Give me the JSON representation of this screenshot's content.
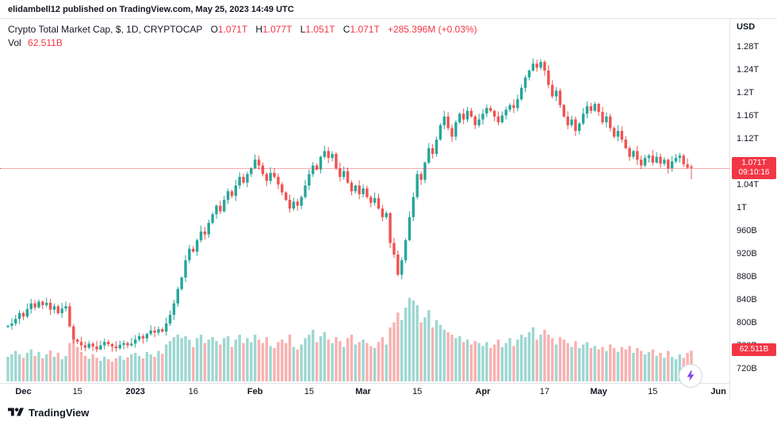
{
  "header": {
    "text": "elidambell12 published on TradingView.com, May 25, 2023 14:49 UTC"
  },
  "legend": {
    "title": "Crypto Total Market Cap, $, 1D, CRYPTOCAP",
    "o_key": "O",
    "o_value": "1.071T",
    "h_key": "H",
    "h_value": "1.077T",
    "l_key": "L",
    "l_value": "1.051T",
    "c_key": "C",
    "c_value": "1.071T",
    "change": "+285.396M (+0.03%)",
    "vol_label": "Vol",
    "vol_value": "62.511B"
  },
  "price_axis": {
    "currency": "USD",
    "ticks": [
      {
        "value": 1280,
        "label": "1.28T"
      },
      {
        "value": 1240,
        "label": "1.24T"
      },
      {
        "value": 1200,
        "label": "1.2T"
      },
      {
        "value": 1160,
        "label": "1.16T"
      },
      {
        "value": 1120,
        "label": "1.12T"
      },
      {
        "value": 1080,
        "label": "1.08T"
      },
      {
        "value": 1040,
        "label": "1.04T"
      },
      {
        "value": 1000,
        "label": "1T"
      },
      {
        "value": 960,
        "label": "960B"
      },
      {
        "value": 920,
        "label": "920B"
      },
      {
        "value": 880,
        "label": "880B"
      },
      {
        "value": 840,
        "label": "840B"
      },
      {
        "value": 800,
        "label": "800B"
      },
      {
        "value": 760,
        "label": "760B"
      },
      {
        "value": 720,
        "label": "720B"
      }
    ],
    "last_price_badge": {
      "price": "1.071T",
      "countdown": "09:10:16"
    },
    "volume_badge": {
      "value": "62.511B"
    }
  },
  "time_axis": {
    "ticks": [
      {
        "label": "Dec",
        "i": 4,
        "bold": true
      },
      {
        "label": "15",
        "i": 18,
        "bold": false
      },
      {
        "label": "2023",
        "i": 33,
        "bold": true
      },
      {
        "label": "16",
        "i": 48,
        "bold": false
      },
      {
        "label": "Feb",
        "i": 64,
        "bold": true
      },
      {
        "label": "15",
        "i": 78,
        "bold": false
      },
      {
        "label": "Mar",
        "i": 92,
        "bold": true
      },
      {
        "label": "15",
        "i": 106,
        "bold": false
      },
      {
        "label": "Apr",
        "i": 123,
        "bold": true
      },
      {
        "label": "17",
        "i": 139,
        "bold": false
      },
      {
        "label": "May",
        "i": 153,
        "bold": true
      },
      {
        "label": "15",
        "i": 167,
        "bold": false
      },
      {
        "label": "Jun",
        "i": 184,
        "bold": true
      }
    ]
  },
  "footer": {
    "brand": "TradingView"
  },
  "colors": {
    "up": "#26a69a",
    "down": "#ef5350",
    "vol_up": "rgba(38,166,154,0.45)",
    "vol_down": "rgba(239,83,80,0.45)",
    "accent_red": "#f23645",
    "bolt": "#7e3ff2",
    "text": "#131722",
    "border": "#e0e3eb"
  },
  "chart_data": {
    "type": "candlestick+volume",
    "title": "Crypto Total Market Cap, $, 1D, CRYPTOCAP",
    "unit": "billions of USD",
    "ylabel": "USD",
    "y_axis_range": [
      700,
      1300
    ],
    "current_price": 1071,
    "current_volume": 62.511,
    "first_open": 794,
    "last_candle": {
      "open": 1073,
      "high": 1077,
      "low": 1051,
      "close": 1071
    },
    "closes": [
      796,
      800,
      808,
      818,
      812,
      825,
      835,
      828,
      838,
      832,
      836,
      824,
      830,
      818,
      826,
      830,
      795,
      772,
      768,
      762,
      758,
      765,
      760,
      755,
      762,
      768,
      764,
      760,
      757,
      763,
      766,
      762,
      765,
      772,
      778,
      774,
      782,
      788,
      784,
      790,
      786,
      800,
      815,
      835,
      860,
      880,
      910,
      930,
      925,
      945,
      960,
      955,
      975,
      990,
      1005,
      995,
      1015,
      1030,
      1022,
      1040,
      1055,
      1045,
      1060,
      1070,
      1085,
      1075,
      1060,
      1048,
      1062,
      1055,
      1042,
      1028,
      1015,
      1000,
      1012,
      1005,
      1020,
      1040,
      1060,
      1075,
      1068,
      1090,
      1100,
      1088,
      1095,
      1070,
      1055,
      1065,
      1045,
      1030,
      1040,
      1025,
      1035,
      1020,
      1010,
      1018,
      1000,
      985,
      992,
      940,
      920,
      885,
      910,
      945,
      985,
      1020,
      1060,
      1050,
      1080,
      1105,
      1095,
      1120,
      1145,
      1160,
      1140,
      1125,
      1150,
      1165,
      1155,
      1170,
      1160,
      1145,
      1155,
      1165,
      1175,
      1170,
      1160,
      1150,
      1162,
      1172,
      1180,
      1175,
      1190,
      1210,
      1228,
      1240,
      1252,
      1245,
      1255,
      1240,
      1215,
      1195,
      1205,
      1180,
      1160,
      1145,
      1155,
      1135,
      1148,
      1165,
      1178,
      1170,
      1182,
      1168,
      1150,
      1160,
      1140,
      1125,
      1135,
      1120,
      1105,
      1090,
      1100,
      1085,
      1075,
      1088,
      1092,
      1080,
      1090,
      1078,
      1085,
      1070,
      1082,
      1088,
      1092,
      1077,
      1071,
      1071
    ],
    "volumes": [
      50,
      55,
      62,
      55,
      48,
      58,
      65,
      52,
      60,
      47,
      55,
      63,
      50,
      58,
      45,
      52,
      78,
      85,
      70,
      60,
      52,
      46,
      55,
      48,
      42,
      50,
      45,
      40,
      47,
      52,
      44,
      49,
      55,
      58,
      52,
      47,
      60,
      55,
      50,
      62,
      56,
      75,
      82,
      90,
      95,
      88,
      92,
      85,
      70,
      88,
      95,
      78,
      85,
      90,
      82,
      75,
      88,
      92,
      70,
      85,
      95,
      78,
      88,
      80,
      95,
      85,
      78,
      90,
      72,
      68,
      80,
      85,
      78,
      95,
      70,
      65,
      75,
      88,
      95,
      105,
      80,
      92,
      100,
      85,
      78,
      90,
      82,
      70,
      88,
      95,
      75,
      80,
      85,
      78,
      72,
      68,
      80,
      90,
      75,
      110,
      120,
      140,
      125,
      150,
      170,
      165,
      155,
      120,
      130,
      145,
      110,
      125,
      115,
      105,
      100,
      95,
      88,
      92,
      80,
      85,
      75,
      82,
      78,
      72,
      80,
      68,
      75,
      85,
      70,
      78,
      88,
      72,
      85,
      95,
      90,
      100,
      110,
      85,
      95,
      105,
      95,
      88,
      75,
      90,
      85,
      78,
      70,
      82,
      68,
      75,
      80,
      68,
      72,
      65,
      70,
      62,
      75,
      68,
      60,
      70,
      65,
      72,
      58,
      68,
      62,
      55,
      60,
      65,
      52,
      58,
      48,
      62,
      50,
      45,
      55,
      48,
      58,
      62.5
    ]
  }
}
